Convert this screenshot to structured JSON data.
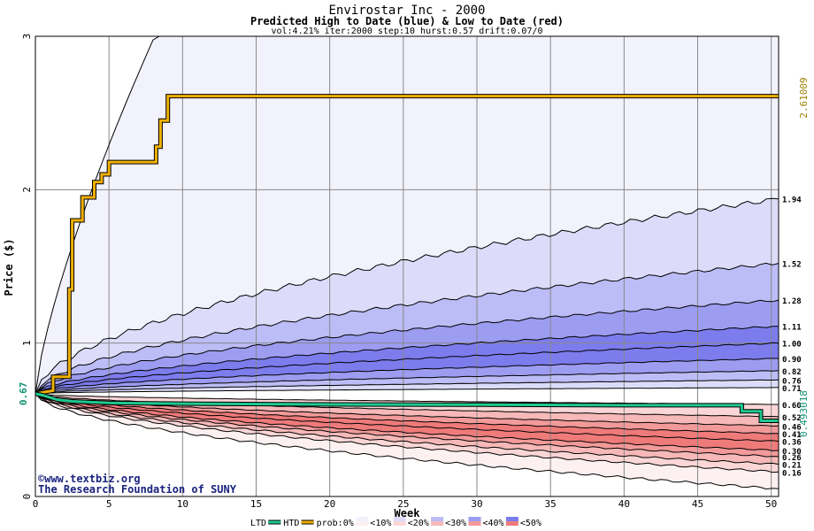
{
  "chart_data": {
    "type": "area",
    "title": "Envirostar Inc - 2000",
    "subtitle": "Predicted High to Date (blue) &  Low to Date (red)",
    "params": "vol:4.21% iter:2000 step:10 hurst:0.57 drift:0.07/0",
    "xlabel": "Week",
    "ylabel": "Price ($)",
    "xlim": [
      0,
      50.5
    ],
    "ylim": [
      0,
      3
    ],
    "x_ticks": [
      0,
      5,
      10,
      15,
      20,
      25,
      30,
      35,
      40,
      45,
      50
    ],
    "y_ticks": [
      0,
      1,
      2,
      3
    ],
    "grid": true,
    "start_price": 0.67,
    "start_label": "0.67",
    "high_final_label": "2.61009",
    "low_final_label": "0.493018",
    "colors": {
      "htd": "#f0b000",
      "ltd": "#20c890",
      "blue_bands": [
        "#f2f2fd",
        "#dcdcfa",
        "#bcbcf6",
        "#9c9cf1",
        "#7c7ced"
      ],
      "red_bands": [
        "#fdf0f0",
        "#fad6d6",
        "#f6b8b8",
        "#f29a9a",
        "#ee7a7a"
      ],
      "line": "#000000",
      "grid": "#888888",
      "axis_text": "#000000",
      "high_label_color": "#a08000",
      "low_label_color": "#109070"
    },
    "upper_quantiles": [
      {
        "p": "0%",
        "final": 3.0,
        "label": ""
      },
      {
        "p": "10%",
        "final": 1.94,
        "label": "1.94"
      },
      {
        "p": "20%",
        "final": 1.52,
        "label": "1.52"
      },
      {
        "p": "30%",
        "final": 1.28,
        "label": "1.28"
      },
      {
        "p": "40%",
        "final": 1.11,
        "label": "1.11"
      },
      {
        "p": "50%",
        "final": 1.0,
        "label": "1.00"
      },
      {
        "p": "",
        "final": 0.9,
        "label": "0.90"
      },
      {
        "p": "",
        "final": 0.82,
        "label": "0.82"
      },
      {
        "p": "",
        "final": 0.76,
        "label": "0.76"
      },
      {
        "p": "",
        "final": 0.71,
        "label": "0.71"
      }
    ],
    "lower_quantiles": [
      {
        "p": "",
        "final": 0.6,
        "label": "0.60"
      },
      {
        "p": "",
        "final": 0.52,
        "label": "0.52"
      },
      {
        "p": "",
        "final": 0.46,
        "label": "0.46"
      },
      {
        "p": "",
        "final": 0.41,
        "label": "0.41"
      },
      {
        "p": "",
        "final": 0.36,
        "label": "0.36"
      },
      {
        "p": "",
        "final": 0.3,
        "label": "0.30"
      },
      {
        "p": "",
        "final": 0.26,
        "label": "0.26"
      },
      {
        "p": "",
        "final": 0.21,
        "label": "0.21"
      },
      {
        "p": "",
        "final": 0.16,
        "label": "0.16"
      },
      {
        "p": "0%",
        "final": 0.05,
        "label": ""
      }
    ],
    "series": [
      {
        "name": "HTD",
        "x": [
          0,
          1.2,
          1.2,
          2.3,
          2.3,
          2.5,
          2.5,
          3.2,
          3.2,
          4.0,
          4.0,
          4.5,
          4.5,
          5.0,
          5.0,
          5.3,
          5.3,
          8.2,
          8.2,
          8.5,
          8.5,
          9.0,
          9.0,
          50.5
        ],
        "values": [
          0.67,
          0.69,
          0.78,
          0.78,
          1.35,
          1.35,
          1.8,
          1.8,
          1.95,
          1.95,
          2.05,
          2.05,
          2.1,
          2.1,
          2.18,
          2.18,
          2.18,
          2.18,
          2.28,
          2.28,
          2.45,
          2.45,
          2.61,
          2.61
        ]
      },
      {
        "name": "LTD",
        "x": [
          0,
          0.5,
          1.5,
          2.5,
          5,
          10,
          20,
          30,
          40,
          48,
          48,
          49.3,
          49.3,
          50.5
        ],
        "values": [
          0.67,
          0.66,
          0.63,
          0.62,
          0.61,
          0.605,
          0.6,
          0.598,
          0.595,
          0.595,
          0.555,
          0.555,
          0.493,
          0.493
        ]
      }
    ],
    "legend": {
      "placement": "bottom",
      "ltd": "LTD",
      "htd": "HTD",
      "prob": "prob:0%",
      "items": [
        "<10%",
        "<20%",
        "<30%",
        "<40%",
        "<50%"
      ]
    },
    "watermark_line1": "©www.textbiz.org",
    "watermark_line2": "The Research Foundation of SUNY"
  }
}
